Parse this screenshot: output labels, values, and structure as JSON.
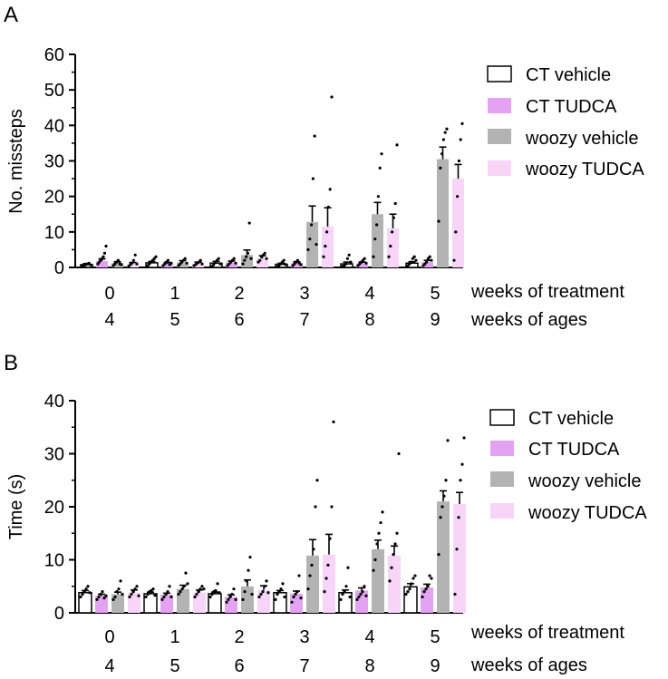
{
  "colors": {
    "ct_vehicle": "#ffffff",
    "ct_tudca": "#e3a3f2",
    "woozy_vehicle": "#b3b3b3",
    "woozy_tudca": "#f7d4f8"
  },
  "chart_data": [
    {
      "type": "bar",
      "panel_label": "A",
      "ylabel": "No. missteps",
      "ylim": [
        0,
        60
      ],
      "yticks": [
        0,
        10,
        20,
        30,
        40,
        50,
        60
      ],
      "categories": [
        "0",
        "1",
        "2",
        "3",
        "4",
        "5"
      ],
      "x_secondary": [
        "4",
        "5",
        "6",
        "7",
        "8",
        "9"
      ],
      "xlabel": "weeks of treatment",
      "xlabel_secondary": "weeks of ages",
      "legend": [
        "CT vehicle",
        "CT TUDCA",
        "woozy vehicle",
        "woozy TUDCA"
      ],
      "series": [
        {
          "name": "CT vehicle",
          "values": [
            0.8,
            1.3,
            1.2,
            0.9,
            1.0,
            1.2
          ],
          "errors": [
            0.3,
            0.4,
            0.5,
            0.3,
            0.5,
            0.4
          ]
        },
        {
          "name": "CT TUDCA",
          "values": [
            1.8,
            1.0,
            1.4,
            1.2,
            1.1,
            1.5
          ],
          "errors": [
            0.6,
            0.4,
            0.4,
            0.4,
            0.4,
            0.5
          ]
        },
        {
          "name": "woozy vehicle",
          "values": [
            1.2,
            1.4,
            3.5,
            12.8,
            15.0,
            30.5
          ],
          "errors": [
            0.4,
            0.5,
            1.4,
            4.5,
            3.3,
            3.4
          ]
        },
        {
          "name": "woozy TUDCA",
          "values": [
            1.0,
            1.1,
            2.5,
            11.5,
            11.0,
            25.0
          ],
          "errors": [
            0.4,
            0.4,
            0.8,
            5.3,
            4.0,
            4.0
          ]
        }
      ],
      "points": [
        [
          [
            0.3,
            0.5,
            0.8,
            1.0,
            1.2,
            0.7
          ],
          [
            1.0,
            1.5,
            2.0,
            2.5,
            3.0,
            4.0,
            6.0
          ],
          [
            0.5,
            1.0,
            1.5,
            2.0,
            1.0,
            0.8
          ],
          [
            0.3,
            0.8,
            1.2,
            2.0,
            3.5,
            1.0
          ]
        ],
        [
          [
            0.5,
            1.0,
            1.5,
            2.0,
            2.5,
            3.0
          ],
          [
            0.5,
            1.0,
            1.5,
            2.0,
            0.8,
            1.2
          ],
          [
            0.5,
            1.0,
            1.5,
            2.0,
            2.5,
            1.2
          ],
          [
            0.5,
            0.8,
            1.2,
            1.5,
            2.0,
            1.0
          ]
        ],
        [
          [
            0.3,
            0.8,
            1.5,
            2.0,
            2.5,
            1.0
          ],
          [
            0.5,
            1.0,
            1.5,
            2.0,
            2.5,
            1.2
          ],
          [
            1.0,
            2.0,
            3.0,
            4.0,
            12.5,
            2.5
          ],
          [
            1.5,
            2.0,
            3.0,
            3.5,
            4.0,
            2.5
          ]
        ],
        [
          [
            0.2,
            0.5,
            1.0,
            1.5,
            2.0,
            0.8
          ],
          [
            0.5,
            1.0,
            1.5,
            2.0,
            1.2,
            0.8
          ],
          [
            5.0,
            8.0,
            12.0,
            25.0,
            37.0,
            6.5
          ],
          [
            3.0,
            6.0,
            10.0,
            17.0,
            22.0,
            48.0
          ]
        ],
        [
          [
            0.3,
            0.5,
            1.0,
            2.5,
            3.5,
            1.5
          ],
          [
            0.5,
            1.0,
            1.5,
            2.0,
            2.5,
            1.2
          ],
          [
            3.0,
            8.0,
            12.0,
            20.0,
            28.0,
            32.0
          ],
          [
            3.0,
            6.0,
            10.0,
            14.0,
            18.0,
            34.5
          ]
        ],
        [
          [
            0.5,
            1.0,
            1.5,
            2.5,
            3.0,
            2.0
          ],
          [
            0.5,
            1.0,
            1.5,
            2.5,
            3.0,
            2.0
          ],
          [
            13.0,
            28.0,
            32.0,
            36.0,
            38.0,
            39.0
          ],
          [
            2.0,
            10.0,
            20.0,
            30.0,
            36.0,
            40.5
          ]
        ]
      ]
    },
    {
      "type": "bar",
      "panel_label": "B",
      "ylabel": "Time (s)",
      "ylim": [
        0,
        40
      ],
      "yticks": [
        0,
        10,
        20,
        30,
        40
      ],
      "categories": [
        "0",
        "1",
        "2",
        "3",
        "4",
        "5"
      ],
      "x_secondary": [
        "4",
        "5",
        "6",
        "7",
        "8",
        "9"
      ],
      "xlabel": "weeks of treatment",
      "xlabel_secondary": "weeks of ages",
      "legend": [
        "CT vehicle",
        "CT TUDCA",
        "woozy vehicle",
        "woozy TUDCA"
      ],
      "series": [
        {
          "name": "CT vehicle",
          "values": [
            3.8,
            3.6,
            3.6,
            3.8,
            3.8,
            4.9
          ],
          "errors": [
            0.4,
            0.3,
            0.3,
            0.4,
            0.5,
            0.6
          ]
        },
        {
          "name": "CT TUDCA",
          "values": [
            3.2,
            3.4,
            3.0,
            3.6,
            4.2,
            4.8
          ],
          "errors": [
            0.3,
            0.3,
            0.4,
            0.5,
            0.5,
            0.6
          ]
        },
        {
          "name": "woozy vehicle",
          "values": [
            3.5,
            4.5,
            5.0,
            10.8,
            12.0,
            21.0
          ],
          "errors": [
            0.4,
            0.7,
            1.2,
            3.0,
            1.7,
            2.0
          ]
        },
        {
          "name": "woozy TUDCA",
          "values": [
            3.8,
            3.8,
            4.3,
            11.0,
            10.8,
            20.5
          ],
          "errors": [
            0.5,
            0.5,
            0.8,
            3.8,
            1.8,
            2.2
          ]
        }
      ],
      "points": [
        [
          [
            3.0,
            3.5,
            4.0,
            4.5,
            5.0,
            3.8
          ],
          [
            2.5,
            3.0,
            3.5,
            4.0,
            2.8,
            3.2
          ],
          [
            2.5,
            3.0,
            4.0,
            4.5,
            6.0,
            3.5
          ],
          [
            3.0,
            3.5,
            4.0,
            4.5,
            5.0,
            3.2
          ]
        ],
        [
          [
            3.0,
            3.5,
            4.0,
            4.2,
            4.5,
            3.3
          ],
          [
            2.5,
            3.0,
            3.5,
            4.0,
            5.0,
            3.0
          ],
          [
            3.5,
            4.0,
            4.5,
            5.0,
            7.5,
            5.5
          ],
          [
            3.0,
            3.5,
            4.0,
            4.5,
            5.0,
            4.5
          ]
        ],
        [
          [
            3.0,
            3.5,
            4.0,
            4.2,
            5.5,
            3.8
          ],
          [
            2.0,
            2.5,
            3.0,
            3.5,
            4.5,
            2.5
          ],
          [
            2.5,
            4.0,
            6.0,
            8.0,
            10.5,
            3.5
          ],
          [
            3.0,
            3.5,
            4.0,
            5.0,
            6.0,
            3.8
          ]
        ],
        [
          [
            2.5,
            3.5,
            4.0,
            4.5,
            5.5,
            3.0
          ],
          [
            2.0,
            3.0,
            3.5,
            4.0,
            7.0,
            2.8
          ],
          [
            4.5,
            7.0,
            9.0,
            12.0,
            20.0,
            25.0
          ],
          [
            4.0,
            6.5,
            9.0,
            14.0,
            20.0,
            36.0
          ]
        ],
        [
          [
            2.5,
            3.5,
            4.0,
            5.0,
            8.5,
            3.0
          ],
          [
            2.5,
            3.0,
            3.5,
            4.0,
            5.0,
            3.2
          ],
          [
            8.0,
            10.0,
            13.0,
            15.0,
            17.0,
            19.0
          ],
          [
            6.0,
            8.5,
            11.0,
            13.0,
            15.0,
            30.0
          ]
        ],
        [
          [
            3.5,
            4.0,
            4.5,
            5.5,
            6.5,
            7.0
          ],
          [
            3.0,
            4.0,
            4.5,
            5.0,
            7.0,
            6.5
          ],
          [
            11.0,
            18.0,
            20.0,
            22.0,
            25.0,
            32.5
          ],
          [
            3.5,
            12.0,
            18.0,
            25.0,
            28.0,
            33.0
          ]
        ]
      ]
    }
  ]
}
